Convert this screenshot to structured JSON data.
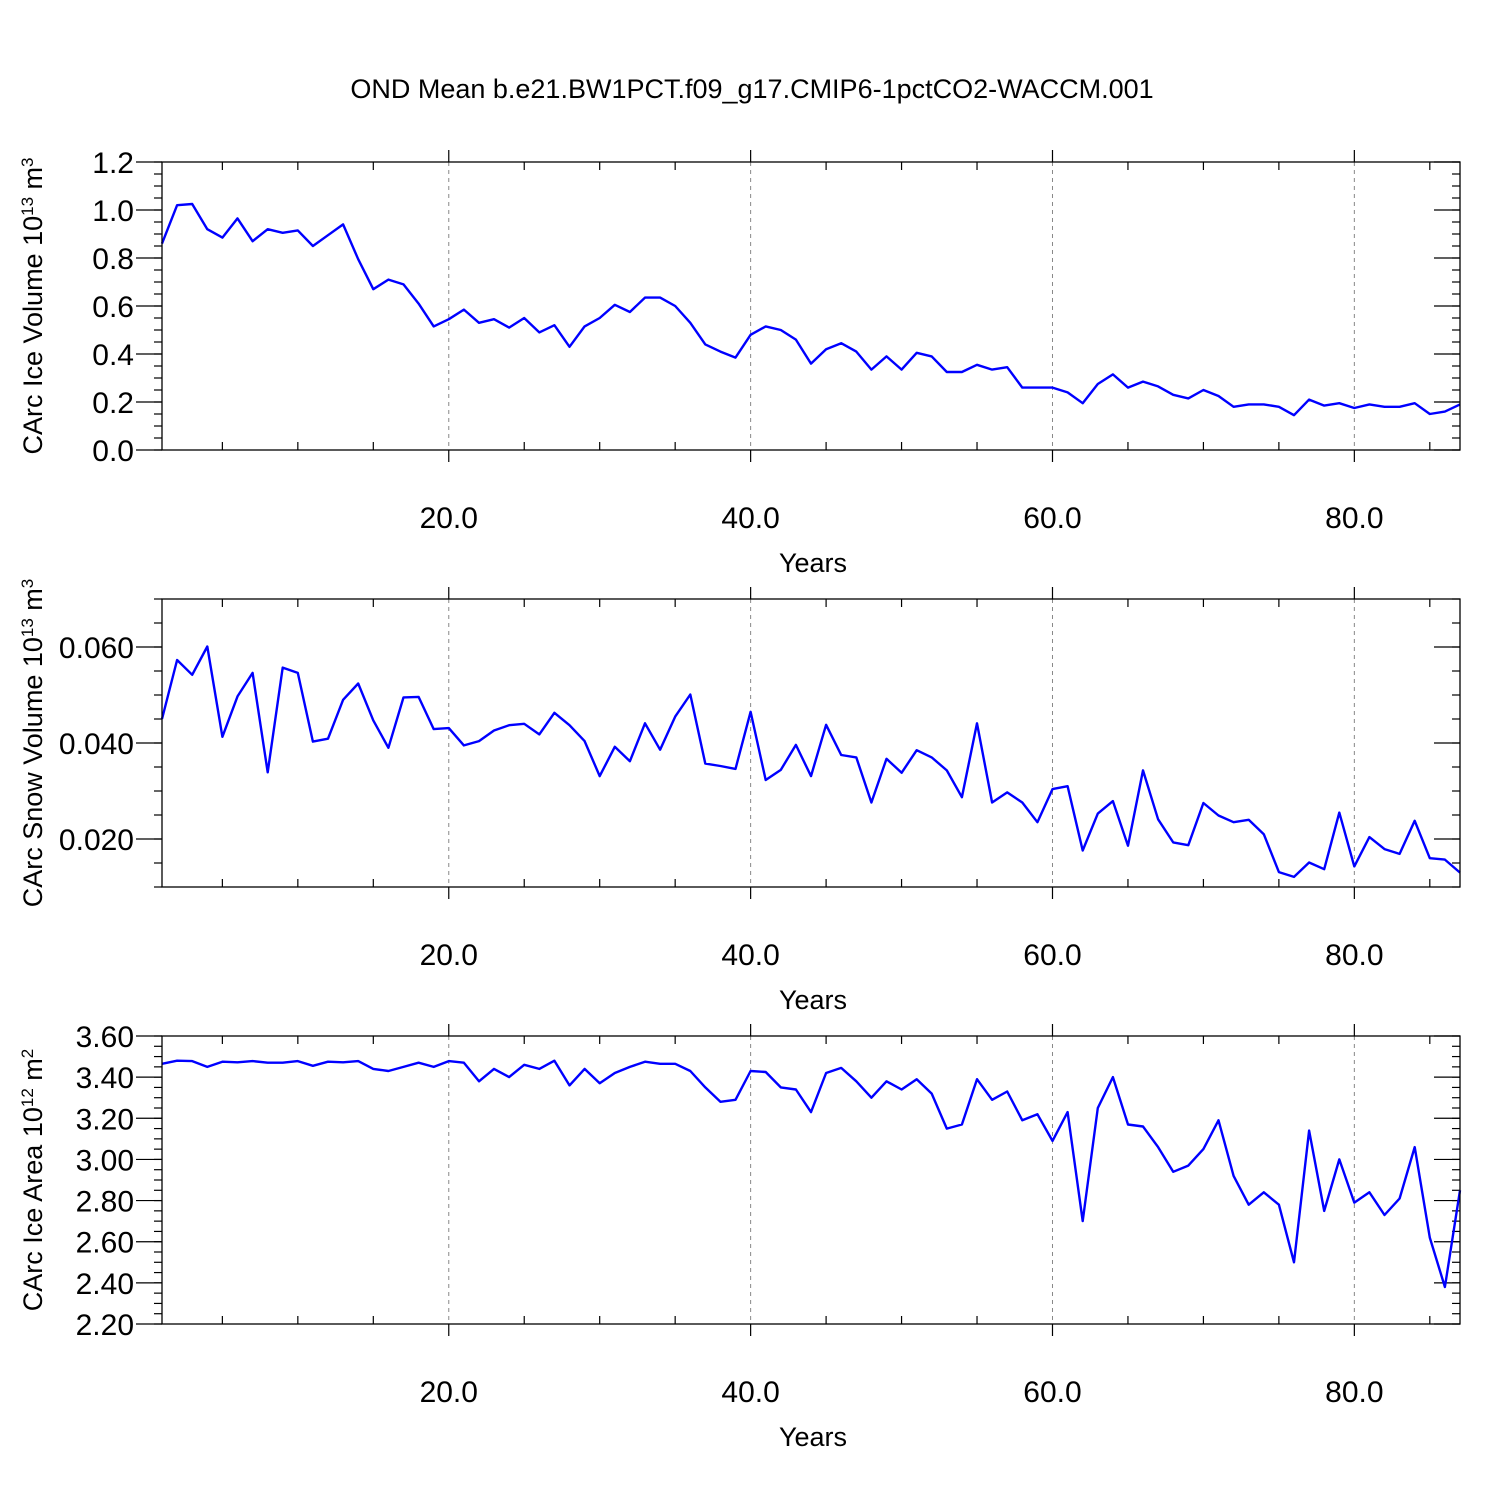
{
  "colors": {
    "series": "#0000ff",
    "grid": "#888888",
    "axis": "#000000"
  },
  "chart_data": [
    {
      "type": "line",
      "title": "OND Mean b.e21.BW1PCT.f09_g17.CMIP6-1pctCO2-WACCM.001",
      "xlabel": "Years",
      "ylabel": "CArc Ice Volume 10",
      "ylabel_exp": "13",
      "ylabel_unit": " m",
      "ylabel_unit_exp": "3",
      "xlim": [
        1,
        87
      ],
      "ylim": [
        0.0,
        1.2
      ],
      "xticks": [
        20,
        40,
        60,
        80
      ],
      "xtick_labels": [
        "20.0",
        "40.0",
        "60.0",
        "80.0"
      ],
      "yticks": [
        0.0,
        0.2,
        0.4,
        0.6,
        0.8,
        1.0,
        1.2
      ],
      "ytick_labels": [
        "0.0",
        "0.2",
        "0.4",
        "0.6",
        "0.8",
        "1.0",
        "1.2"
      ],
      "grid": "vertical dashed at major x ticks",
      "series": [
        {
          "x": [
            1,
            2,
            3,
            4,
            5,
            6,
            7,
            8,
            9,
            10,
            11,
            12,
            13,
            14,
            15,
            16,
            17,
            18,
            19,
            20,
            21,
            22,
            23,
            24,
            25,
            26,
            27,
            28,
            29,
            30,
            31,
            32,
            33,
            34,
            35,
            36,
            37,
            38,
            39,
            40,
            41,
            42,
            43,
            44,
            45,
            46,
            47,
            48,
            49,
            50,
            51,
            52,
            53,
            54,
            55,
            56,
            57,
            58,
            59,
            60,
            61,
            62,
            63,
            64,
            65,
            66,
            67,
            68,
            69,
            70,
            71,
            72,
            73,
            74,
            75,
            76,
            77,
            78,
            79,
            80,
            81,
            82,
            83,
            84,
            85,
            86,
            87
          ],
          "values": [
            0.86,
            1.02,
            1.025,
            0.92,
            0.885,
            0.965,
            0.87,
            0.92,
            0.905,
            0.915,
            0.85,
            0.895,
            0.94,
            0.795,
            0.67,
            0.71,
            0.69,
            0.61,
            0.515,
            0.545,
            0.585,
            0.53,
            0.545,
            0.51,
            0.55,
            0.49,
            0.52,
            0.43,
            0.515,
            0.55,
            0.605,
            0.575,
            0.635,
            0.635,
            0.6,
            0.53,
            0.44,
            0.41,
            0.385,
            0.48,
            0.515,
            0.5,
            0.46,
            0.36,
            0.42,
            0.445,
            0.41,
            0.335,
            0.39,
            0.335,
            0.405,
            0.39,
            0.325,
            0.325,
            0.355,
            0.335,
            0.345,
            0.26,
            0.26,
            0.26,
            0.24,
            0.195,
            0.275,
            0.315,
            0.26,
            0.285,
            0.265,
            0.23,
            0.215,
            0.25,
            0.225,
            0.18,
            0.19,
            0.19,
            0.18,
            0.145,
            0.21,
            0.185,
            0.195,
            0.175,
            0.19,
            0.18,
            0.18,
            0.195,
            0.15,
            0.16,
            0.19
          ]
        }
      ]
    },
    {
      "type": "line",
      "xlabel": "Years",
      "ylabel": "CArc Snow Volume 10",
      "ylabel_exp": "13",
      "ylabel_unit": " m",
      "ylabel_unit_exp": "3",
      "xlim": [
        1,
        87
      ],
      "ylim": [
        0.01,
        0.07
      ],
      "xticks": [
        20,
        40,
        60,
        80
      ],
      "xtick_labels": [
        "20.0",
        "40.0",
        "60.0",
        "80.0"
      ],
      "yticks": [
        0.02,
        0.04,
        0.06
      ],
      "ytick_labels": [
        "0.020",
        "0.040",
        "0.060"
      ],
      "grid": "vertical dashed at major x ticks",
      "series": [
        {
          "x": [
            1,
            2,
            3,
            4,
            5,
            6,
            7,
            8,
            9,
            10,
            11,
            12,
            13,
            14,
            15,
            16,
            17,
            18,
            19,
            20,
            21,
            22,
            23,
            24,
            25,
            26,
            27,
            28,
            29,
            30,
            31,
            32,
            33,
            34,
            35,
            36,
            37,
            38,
            39,
            40,
            41,
            42,
            43,
            44,
            45,
            46,
            47,
            48,
            49,
            50,
            51,
            52,
            53,
            54,
            55,
            56,
            57,
            58,
            59,
            60,
            61,
            62,
            63,
            64,
            65,
            66,
            67,
            68,
            69,
            70,
            71,
            72,
            73,
            74,
            75,
            76,
            77,
            78,
            79,
            80,
            81,
            82,
            83,
            84,
            85,
            86,
            87
          ],
          "values": [
            0.045,
            0.0573,
            0.0542,
            0.0601,
            0.0413,
            0.0497,
            0.0546,
            0.0339,
            0.0557,
            0.0546,
            0.0403,
            0.0409,
            0.049,
            0.0524,
            0.0447,
            0.039,
            0.0495,
            0.0496,
            0.0429,
            0.0431,
            0.0395,
            0.0404,
            0.0426,
            0.0437,
            0.044,
            0.0418,
            0.0463,
            0.0437,
            0.0404,
            0.0331,
            0.0392,
            0.0362,
            0.0441,
            0.0386,
            0.0455,
            0.0501,
            0.0357,
            0.0352,
            0.0346,
            0.0465,
            0.0323,
            0.0344,
            0.0396,
            0.0331,
            0.0438,
            0.0375,
            0.037,
            0.0276,
            0.0367,
            0.0338,
            0.0385,
            0.037,
            0.0343,
            0.0287,
            0.0441,
            0.0276,
            0.0297,
            0.0276,
            0.0235,
            0.0304,
            0.031,
            0.0176,
            0.0253,
            0.0279,
            0.0186,
            0.0343,
            0.0241,
            0.0193,
            0.0187,
            0.0275,
            0.0249,
            0.0235,
            0.024,
            0.021,
            0.0131,
            0.0121,
            0.0151,
            0.0137,
            0.0255,
            0.0143,
            0.0204,
            0.0179,
            0.0169,
            0.0238,
            0.016,
            0.0157,
            0.013
          ]
        }
      ]
    },
    {
      "type": "line",
      "xlabel": "Years",
      "ylabel": "CArc Ice Area 10",
      "ylabel_exp": "12",
      "ylabel_unit": " m",
      "ylabel_unit_exp": "2",
      "xlim": [
        1,
        87
      ],
      "ylim": [
        2.2,
        3.6
      ],
      "xticks": [
        20,
        40,
        60,
        80
      ],
      "xtick_labels": [
        "20.0",
        "40.0",
        "60.0",
        "80.0"
      ],
      "yticks": [
        2.2,
        2.4,
        2.6,
        2.8,
        3.0,
        3.2,
        3.4,
        3.6
      ],
      "ytick_labels": [
        "2.20",
        "2.40",
        "2.60",
        "2.80",
        "3.00",
        "3.20",
        "3.40",
        "3.60"
      ],
      "grid": "vertical dashed at major x ticks",
      "series": [
        {
          "x": [
            1,
            2,
            3,
            4,
            5,
            6,
            7,
            8,
            9,
            10,
            11,
            12,
            13,
            14,
            15,
            16,
            17,
            18,
            19,
            20,
            21,
            22,
            23,
            24,
            25,
            26,
            27,
            28,
            29,
            30,
            31,
            32,
            33,
            34,
            35,
            36,
            37,
            38,
            39,
            40,
            41,
            42,
            43,
            44,
            45,
            46,
            47,
            48,
            49,
            50,
            51,
            52,
            53,
            54,
            55,
            56,
            57,
            58,
            59,
            60,
            61,
            62,
            63,
            64,
            65,
            66,
            67,
            68,
            69,
            70,
            71,
            72,
            73,
            74,
            75,
            76,
            77,
            78,
            79,
            80,
            81,
            82,
            83,
            84,
            85,
            86,
            87
          ],
          "values": [
            3.465,
            3.48,
            3.478,
            3.45,
            3.475,
            3.472,
            3.478,
            3.47,
            3.47,
            3.478,
            3.455,
            3.475,
            3.472,
            3.478,
            3.44,
            3.43,
            3.45,
            3.47,
            3.45,
            3.478,
            3.47,
            3.38,
            3.44,
            3.4,
            3.46,
            3.44,
            3.48,
            3.36,
            3.44,
            3.37,
            3.42,
            3.45,
            3.475,
            3.465,
            3.465,
            3.43,
            3.35,
            3.28,
            3.29,
            3.43,
            3.425,
            3.35,
            3.34,
            3.23,
            3.42,
            3.445,
            3.38,
            3.3,
            3.38,
            3.34,
            3.39,
            3.32,
            3.15,
            3.17,
            3.39,
            3.29,
            3.33,
            3.19,
            3.22,
            3.09,
            3.23,
            2.7,
            3.25,
            3.4,
            3.17,
            3.16,
            3.06,
            2.94,
            2.97,
            3.05,
            3.19,
            2.92,
            2.78,
            2.84,
            2.78,
            2.5,
            3.14,
            2.75,
            3.0,
            2.79,
            2.84,
            2.73,
            2.81,
            3.06,
            2.62,
            2.38,
            2.85
          ]
        }
      ]
    }
  ]
}
